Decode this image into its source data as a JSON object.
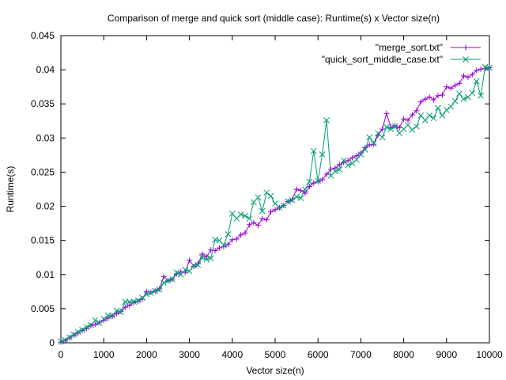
{
  "chart_data": {
    "type": "line",
    "title": "Comparison of merge and quick sort (middle case): Runtime(s) x Vector size(n)",
    "xlabel": "Vector size(n)",
    "ylabel": "Runtime(s)",
    "xlim": [
      0,
      10000
    ],
    "ylim": [
      0,
      0.045
    ],
    "xticks": [
      0,
      1000,
      2000,
      3000,
      4000,
      5000,
      6000,
      7000,
      8000,
      9000,
      10000
    ],
    "yticks": [
      0,
      0.005,
      0.01,
      0.015,
      0.02,
      0.025,
      0.03,
      0.035,
      0.04,
      0.045
    ],
    "xtick_labels": [
      "0",
      "1000",
      "2000",
      "3000",
      "4000",
      "5000",
      "6000",
      "7000",
      "8000",
      "9000",
      "10000"
    ],
    "ytick_labels": [
      "0",
      "0.005",
      "0.01",
      "0.015",
      "0.02",
      "0.025",
      "0.03",
      "0.035",
      "0.04",
      "0.045"
    ],
    "grid": false,
    "legend_position": "top-right",
    "series": [
      {
        "name": "\"merge_sort.txt\"",
        "color": "#9400d3",
        "marker": "plus",
        "x": [
          0,
          100,
          200,
          300,
          400,
          500,
          600,
          700,
          800,
          900,
          1000,
          1100,
          1200,
          1300,
          1400,
          1500,
          1600,
          1700,
          1800,
          1900,
          2000,
          2100,
          2200,
          2300,
          2400,
          2500,
          2600,
          2700,
          2800,
          2900,
          3000,
          3100,
          3200,
          3300,
          3400,
          3500,
          3600,
          3700,
          3800,
          3900,
          4000,
          4100,
          4200,
          4300,
          4400,
          4500,
          4600,
          4700,
          4800,
          4900,
          5000,
          5100,
          5200,
          5300,
          5400,
          5500,
          5600,
          5700,
          5800,
          5900,
          6000,
          6100,
          6200,
          6300,
          6400,
          6500,
          6600,
          6700,
          6800,
          6900,
          7000,
          7100,
          7200,
          7300,
          7400,
          7500,
          7600,
          7700,
          7800,
          7900,
          8000,
          8100,
          8200,
          8300,
          8400,
          8500,
          8600,
          8700,
          8800,
          8900,
          9000,
          9100,
          9200,
          9300,
          9400,
          9500,
          9600,
          9700,
          9800,
          9900,
          10000
        ],
        "y": [
          0.0001,
          0.0003,
          0.0007,
          0.0011,
          0.0014,
          0.0018,
          0.0021,
          0.0025,
          0.0027,
          0.003,
          0.0033,
          0.0036,
          0.0039,
          0.0043,
          0.0046,
          0.0052,
          0.0055,
          0.0059,
          0.0061,
          0.0064,
          0.0075,
          0.0074,
          0.0076,
          0.0079,
          0.0097,
          0.0091,
          0.0093,
          0.0101,
          0.0104,
          0.0103,
          0.0121,
          0.0112,
          0.0116,
          0.013,
          0.0126,
          0.0136,
          0.0135,
          0.0139,
          0.0141,
          0.0144,
          0.0151,
          0.0152,
          0.0158,
          0.0161,
          0.0173,
          0.0176,
          0.0172,
          0.0182,
          0.018,
          0.0192,
          0.0195,
          0.0198,
          0.0201,
          0.0207,
          0.021,
          0.0225,
          0.0223,
          0.0219,
          0.0229,
          0.0234,
          0.0236,
          0.0239,
          0.0247,
          0.0254,
          0.0256,
          0.0261,
          0.0264,
          0.0267,
          0.0271,
          0.0274,
          0.0278,
          0.0286,
          0.029,
          0.0291,
          0.0304,
          0.0313,
          0.0336,
          0.0316,
          0.0318,
          0.0315,
          0.0328,
          0.0326,
          0.0334,
          0.034,
          0.0353,
          0.0357,
          0.036,
          0.0356,
          0.0362,
          0.0363,
          0.0375,
          0.0373,
          0.0377,
          0.038,
          0.0391,
          0.0389,
          0.0393,
          0.0399,
          0.0401,
          0.0402,
          0.0403
        ]
      },
      {
        "name": "\"quick_sort_middle_case.txt\"",
        "color": "#009e73",
        "marker": "cross",
        "x": [
          0,
          100,
          200,
          300,
          400,
          500,
          600,
          700,
          800,
          900,
          1000,
          1100,
          1200,
          1300,
          1400,
          1500,
          1600,
          1700,
          1800,
          1900,
          2000,
          2100,
          2200,
          2300,
          2400,
          2500,
          2600,
          2700,
          2800,
          2900,
          3000,
          3100,
          3200,
          3300,
          3400,
          3500,
          3600,
          3700,
          3800,
          3900,
          4000,
          4100,
          4200,
          4300,
          4400,
          4500,
          4600,
          4700,
          4800,
          4900,
          5000,
          5100,
          5200,
          5300,
          5400,
          5500,
          5600,
          5700,
          5800,
          5900,
          6000,
          6100,
          6200,
          6300,
          6400,
          6500,
          6600,
          6700,
          6800,
          6900,
          7000,
          7100,
          7200,
          7300,
          7400,
          7500,
          7600,
          7700,
          7800,
          7900,
          8000,
          8100,
          8200,
          8300,
          8400,
          8500,
          8600,
          8700,
          8800,
          8900,
          9000,
          9100,
          9200,
          9300,
          9400,
          9500,
          9600,
          9700,
          9800,
          9900,
          10000
        ],
        "y": [
          0.0002,
          0.0004,
          0.0008,
          0.0012,
          0.0016,
          0.0019,
          0.0023,
          0.0026,
          0.0033,
          0.0029,
          0.0035,
          0.004,
          0.004,
          0.0047,
          0.0045,
          0.006,
          0.006,
          0.006,
          0.0062,
          0.0066,
          0.0071,
          0.0073,
          0.0076,
          0.0078,
          0.0088,
          0.0091,
          0.0093,
          0.0103,
          0.01,
          0.0107,
          0.0105,
          0.0113,
          0.0114,
          0.0125,
          0.0122,
          0.0124,
          0.0151,
          0.015,
          0.0143,
          0.0159,
          0.0189,
          0.0182,
          0.0188,
          0.0186,
          0.0182,
          0.0206,
          0.0213,
          0.0193,
          0.022,
          0.0215,
          0.0204,
          0.0198,
          0.0201,
          0.0207,
          0.0209,
          0.0214,
          0.0212,
          0.0225,
          0.0236,
          0.0281,
          0.0237,
          0.0276,
          0.0326,
          0.0245,
          0.0251,
          0.0254,
          0.0267,
          0.026,
          0.0263,
          0.0268,
          0.0276,
          0.0283,
          0.0301,
          0.0292,
          0.0307,
          0.0301,
          0.0316,
          0.0313,
          0.0317,
          0.0307,
          0.0313,
          0.0319,
          0.0312,
          0.0317,
          0.0333,
          0.0326,
          0.0333,
          0.0329,
          0.0344,
          0.0333,
          0.0341,
          0.0346,
          0.0354,
          0.0365,
          0.0357,
          0.036,
          0.0366,
          0.0383,
          0.0362,
          0.0404,
          0.0403
        ]
      }
    ]
  }
}
